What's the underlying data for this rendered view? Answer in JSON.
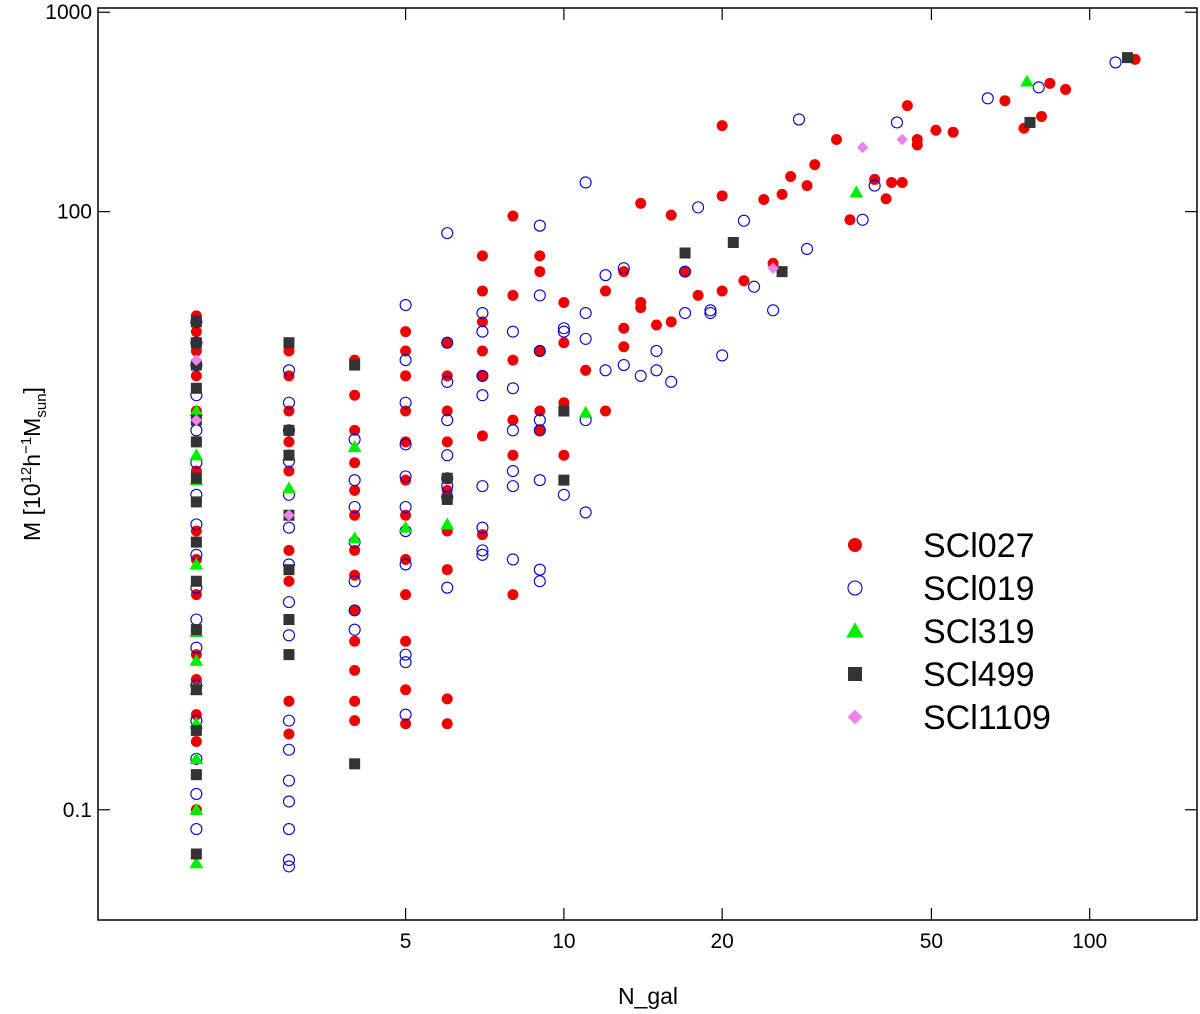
{
  "chart_data": {
    "type": "scatter",
    "title": "",
    "xlabel": "N_gal",
    "ylabel_main": "M [10",
    "ylabel_sup1": "12",
    "ylabel_mid": "h",
    "ylabel_sup2": "−1",
    "ylabel_m": "M",
    "ylabel_sub": "sun",
    "ylabel_end": "]",
    "xscale": "log",
    "yscale": "log",
    "xlim": [
      1.3,
      160
    ],
    "ylim": [
      0.028,
      1050
    ],
    "xticks": [
      {
        "value": 5,
        "label": "5"
      },
      {
        "value": 10,
        "label": "10"
      },
      {
        "value": 20,
        "label": "20"
      },
      {
        "value": 50,
        "label": "50"
      },
      {
        "value": 100,
        "label": "100"
      }
    ],
    "yticks": [
      {
        "value": 0.1,
        "label": "0.1"
      },
      {
        "value": 100,
        "label": "100"
      },
      {
        "value": 1000,
        "label": "1000"
      }
    ],
    "legend_position": "center-right",
    "series": [
      {
        "name": "SCl027",
        "marker": "filled-circle",
        "color": "#ee0000",
        "points": [
          [
            2,
            30
          ],
          [
            2,
            25
          ],
          [
            2,
            20
          ],
          [
            2,
            15
          ],
          [
            2,
            10
          ],
          [
            2,
            7
          ],
          [
            2,
            5
          ],
          [
            2,
            3.5
          ],
          [
            2,
            2.5
          ],
          [
            2,
            1.8
          ],
          [
            2,
            1.2
          ],
          [
            2,
            0.8
          ],
          [
            2,
            0.6
          ],
          [
            2,
            0.45
          ],
          [
            2,
            0.3
          ],
          [
            2,
            0.22
          ],
          [
            2,
            0.15
          ],
          [
            2,
            0.1
          ],
          [
            3,
            20
          ],
          [
            3,
            15
          ],
          [
            3,
            10
          ],
          [
            3,
            7
          ],
          [
            3,
            5
          ],
          [
            3,
            3
          ],
          [
            3,
            2
          ],
          [
            3,
            1.4
          ],
          [
            3,
            0.9
          ],
          [
            3,
            0.6
          ],
          [
            3,
            0.35
          ],
          [
            3,
            0.24
          ],
          [
            4,
            18
          ],
          [
            4,
            12
          ],
          [
            4,
            8
          ],
          [
            4,
            5.5
          ],
          [
            4,
            4
          ],
          [
            4,
            3
          ],
          [
            4,
            2
          ],
          [
            4,
            1.5
          ],
          [
            4,
            1
          ],
          [
            4,
            0.7
          ],
          [
            4,
            0.5
          ],
          [
            4,
            0.35
          ],
          [
            4,
            0.28
          ],
          [
            5,
            25
          ],
          [
            5,
            20
          ],
          [
            5,
            15
          ],
          [
            5,
            10
          ],
          [
            5,
            7
          ],
          [
            5,
            4.5
          ],
          [
            5,
            3
          ],
          [
            5,
            1.8
          ],
          [
            5,
            1.2
          ],
          [
            5,
            0.7
          ],
          [
            5,
            0.4
          ],
          [
            5,
            0.27
          ],
          [
            6,
            22
          ],
          [
            6,
            15
          ],
          [
            6,
            10
          ],
          [
            6,
            7
          ],
          [
            6,
            4
          ],
          [
            6,
            2.5
          ],
          [
            6,
            1.6
          ],
          [
            6,
            0.36
          ],
          [
            6,
            0.27
          ],
          [
            7,
            60
          ],
          [
            7,
            40
          ],
          [
            7,
            28
          ],
          [
            7,
            20
          ],
          [
            7,
            15
          ],
          [
            7,
            7.5
          ],
          [
            7,
            2.4
          ],
          [
            8,
            95
          ],
          [
            8,
            38
          ],
          [
            8,
            18
          ],
          [
            8,
            9
          ],
          [
            8,
            6
          ],
          [
            8,
            1.2
          ],
          [
            9,
            60
          ],
          [
            9,
            50
          ],
          [
            9,
            20
          ],
          [
            9,
            10
          ],
          [
            9,
            8
          ],
          [
            10,
            35
          ],
          [
            10,
            22
          ],
          [
            10,
            11
          ],
          [
            10,
            6
          ],
          [
            11,
            16
          ],
          [
            12,
            40
          ],
          [
            12,
            10
          ],
          [
            13,
            50
          ],
          [
            13,
            26
          ],
          [
            13,
            21
          ],
          [
            14,
            33
          ],
          [
            14,
            110
          ],
          [
            14,
            35
          ],
          [
            15,
            27
          ],
          [
            16,
            96
          ],
          [
            16,
            28
          ],
          [
            17,
            50
          ],
          [
            18,
            38
          ],
          [
            20,
            270
          ],
          [
            20,
            40
          ],
          [
            20,
            120
          ],
          [
            22,
            45
          ],
          [
            24,
            115
          ],
          [
            25,
            55
          ],
          [
            26,
            122
          ],
          [
            27,
            150
          ],
          [
            29,
            135
          ],
          [
            30,
            172
          ],
          [
            33,
            230
          ],
          [
            35,
            91
          ],
          [
            39,
            145
          ],
          [
            41,
            116
          ],
          [
            42,
            140
          ],
          [
            44,
            140
          ],
          [
            45,
            340
          ],
          [
            47,
            230
          ],
          [
            47,
            216
          ],
          [
            51,
            256
          ],
          [
            55,
            250
          ],
          [
            69,
            360
          ],
          [
            75,
            262
          ],
          [
            81,
            300
          ],
          [
            84,
            440
          ],
          [
            90,
            410
          ],
          [
            122,
            580
          ]
        ]
      },
      {
        "name": "SCl019",
        "marker": "open-circle",
        "color": "#0000cc",
        "points": [
          [
            2,
            28
          ],
          [
            2,
            22
          ],
          [
            2,
            17
          ],
          [
            2,
            12
          ],
          [
            2,
            8
          ],
          [
            2,
            5.5
          ],
          [
            2,
            3.8
          ],
          [
            2,
            2.7
          ],
          [
            2,
            1.9
          ],
          [
            2,
            1.3
          ],
          [
            2,
            0.9
          ],
          [
            2,
            0.65
          ],
          [
            2,
            0.42
          ],
          [
            2,
            0.28
          ],
          [
            2,
            0.18
          ],
          [
            2,
            0.12
          ],
          [
            2,
            0.08
          ],
          [
            3,
            16
          ],
          [
            3,
            11
          ],
          [
            3,
            8
          ],
          [
            3,
            5.6
          ],
          [
            3,
            3.8
          ],
          [
            3,
            2.6
          ],
          [
            3,
            1.7
          ],
          [
            3,
            1.1
          ],
          [
            3,
            0.75
          ],
          [
            3,
            0.28
          ],
          [
            3,
            0.2
          ],
          [
            3,
            0.14
          ],
          [
            3,
            0.11
          ],
          [
            3,
            0.08
          ],
          [
            3,
            0.056
          ],
          [
            3,
            0.052
          ],
          [
            4,
            7.2
          ],
          [
            4,
            4.5
          ],
          [
            4,
            3.3
          ],
          [
            4,
            2.2
          ],
          [
            4,
            1.4
          ],
          [
            4,
            1
          ],
          [
            4,
            0.8
          ],
          [
            5,
            34
          ],
          [
            5,
            18
          ],
          [
            5,
            11
          ],
          [
            5,
            6.8
          ],
          [
            5,
            4.7
          ],
          [
            5,
            3.3
          ],
          [
            5,
            2.5
          ],
          [
            5,
            1.7
          ],
          [
            5,
            0.6
          ],
          [
            5,
            0.55
          ],
          [
            5,
            0.3
          ],
          [
            6,
            78
          ],
          [
            6,
            22
          ],
          [
            6,
            14
          ],
          [
            6,
            9
          ],
          [
            6,
            6
          ],
          [
            6,
            4.6
          ],
          [
            6,
            4.2
          ],
          [
            6,
            3.7
          ],
          [
            6,
            1.3
          ],
          [
            7,
            31
          ],
          [
            7,
            25
          ],
          [
            7,
            15
          ],
          [
            7,
            12
          ],
          [
            7,
            4.2
          ],
          [
            7,
            2.6
          ],
          [
            7,
            2
          ],
          [
            7,
            1.9
          ],
          [
            8,
            25
          ],
          [
            8,
            13
          ],
          [
            8,
            8
          ],
          [
            8,
            5
          ],
          [
            8,
            4.2
          ],
          [
            8,
            1.8
          ],
          [
            9,
            85
          ],
          [
            9,
            38
          ],
          [
            9,
            20
          ],
          [
            9,
            9
          ],
          [
            9,
            8
          ],
          [
            9,
            4.5
          ],
          [
            9,
            1.6
          ],
          [
            9,
            1.4
          ],
          [
            10,
            3.8
          ],
          [
            10,
            26
          ],
          [
            10,
            25
          ],
          [
            11,
            140
          ],
          [
            11,
            31
          ],
          [
            11,
            23
          ],
          [
            11,
            9
          ],
          [
            11,
            3.1
          ],
          [
            12,
            16
          ],
          [
            12,
            48
          ],
          [
            13,
            17
          ],
          [
            13,
            52
          ],
          [
            14,
            15
          ],
          [
            15,
            20
          ],
          [
            15,
            16
          ],
          [
            16,
            14
          ],
          [
            17,
            31
          ],
          [
            17,
            50
          ],
          [
            18,
            105
          ],
          [
            19,
            31
          ],
          [
            19,
            32
          ],
          [
            20,
            19
          ],
          [
            22,
            90
          ],
          [
            23,
            42
          ],
          [
            25,
            32
          ],
          [
            28,
            290
          ],
          [
            29,
            65
          ],
          [
            37,
            91
          ],
          [
            39,
            135
          ],
          [
            43,
            280
          ],
          [
            64,
            370
          ],
          [
            80,
            420
          ],
          [
            112,
            560
          ]
        ]
      },
      {
        "name": "SCl319",
        "marker": "triangle",
        "color": "#00ee00",
        "points": [
          [
            2,
            10
          ],
          [
            2,
            6
          ],
          [
            2,
            4.5
          ],
          [
            2,
            1.7
          ],
          [
            2,
            0.78
          ],
          [
            2,
            0.56
          ],
          [
            2,
            0.4
          ],
          [
            2,
            0.27
          ],
          [
            2,
            0.18
          ],
          [
            2,
            0.1
          ],
          [
            2,
            0.054
          ],
          [
            3,
            6
          ],
          [
            3,
            4.1
          ],
          [
            4,
            6.6
          ],
          [
            4,
            2.3
          ],
          [
            5,
            2.6
          ],
          [
            6,
            2.7
          ],
          [
            11,
            9.8
          ],
          [
            36,
            125
          ],
          [
            76,
            450
          ]
        ]
      },
      {
        "name": "SCl499",
        "marker": "square",
        "color": "#333333",
        "points": [
          [
            2,
            28
          ],
          [
            2,
            22
          ],
          [
            2,
            17
          ],
          [
            2,
            13
          ],
          [
            2,
            9
          ],
          [
            2,
            7
          ],
          [
            2,
            4.6
          ],
          [
            2,
            3.5
          ],
          [
            2,
            2.2
          ],
          [
            2,
            1.4
          ],
          [
            2,
            0.8
          ],
          [
            2,
            0.4
          ],
          [
            2,
            0.25
          ],
          [
            2,
            0.15
          ],
          [
            2,
            0.06
          ],
          [
            3,
            22
          ],
          [
            3,
            8
          ],
          [
            3,
            6
          ],
          [
            3,
            3
          ],
          [
            3,
            1.6
          ],
          [
            3,
            0.9
          ],
          [
            3,
            0.6
          ],
          [
            4,
            17
          ],
          [
            4,
            0.17
          ],
          [
            6,
            4.6
          ],
          [
            6,
            3.6
          ],
          [
            10,
            10
          ],
          [
            10,
            4.5
          ],
          [
            17,
            62
          ],
          [
            21,
            70
          ],
          [
            26,
            50
          ],
          [
            77,
            280
          ],
          [
            118,
            592
          ]
        ]
      },
      {
        "name": "SCl1109",
        "marker": "diamond",
        "color": "#ee82ee",
        "points": [
          [
            2,
            18
          ],
          [
            2,
            9
          ],
          [
            3,
            3
          ],
          [
            25,
            52
          ],
          [
            37,
            210
          ],
          [
            44,
            230
          ]
        ]
      }
    ]
  }
}
